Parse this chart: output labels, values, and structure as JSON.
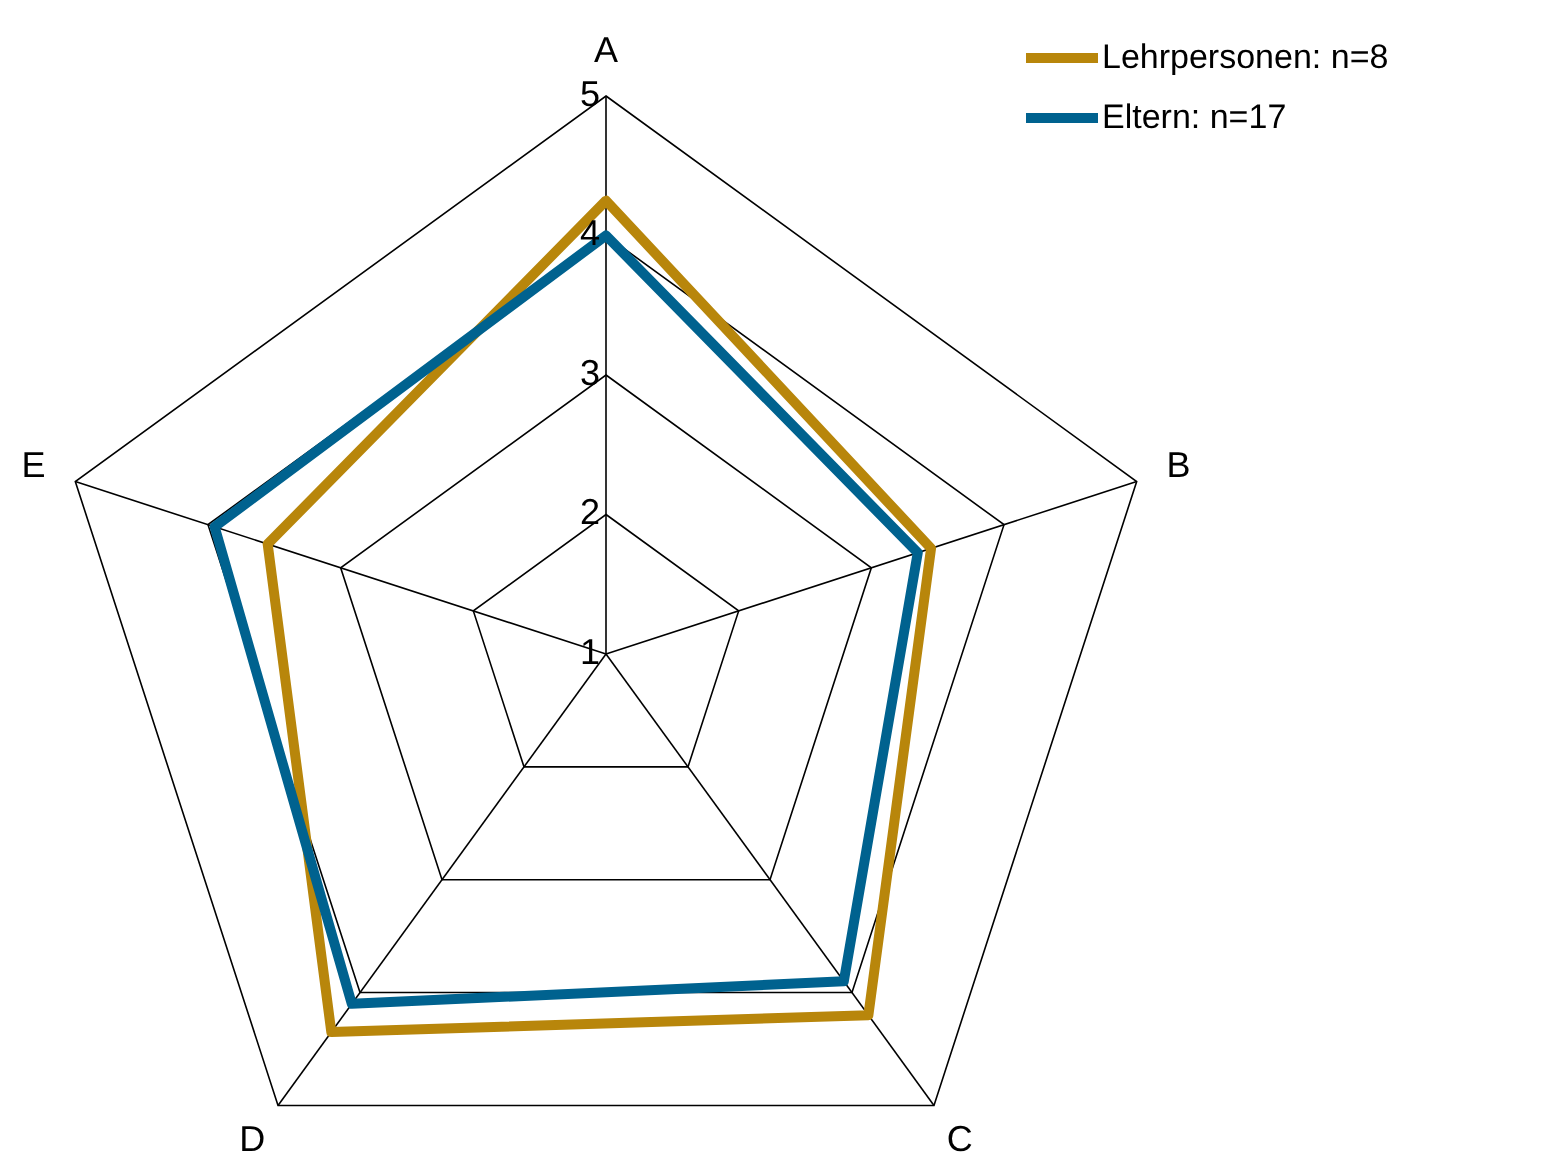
{
  "chart_data": {
    "type": "radar",
    "categories": [
      "A",
      "B",
      "C",
      "D",
      "E"
    ],
    "ylim": [
      1,
      5
    ],
    "yticks": [
      1,
      2,
      3,
      4,
      5
    ],
    "grid": true,
    "legend": "top right",
    "marker": "none",
    "series": [
      {
        "name": "Lehrpersonen: n=8",
        "color": "#b8860b",
        "values": [
          4.25,
          3.45,
          4.2,
          4.35,
          3.55
        ]
      },
      {
        "name": "Eltern: n=17",
        "color": "#00628f",
        "values": [
          4.0,
          3.35,
          3.9,
          4.1,
          3.95
        ]
      }
    ]
  }
}
